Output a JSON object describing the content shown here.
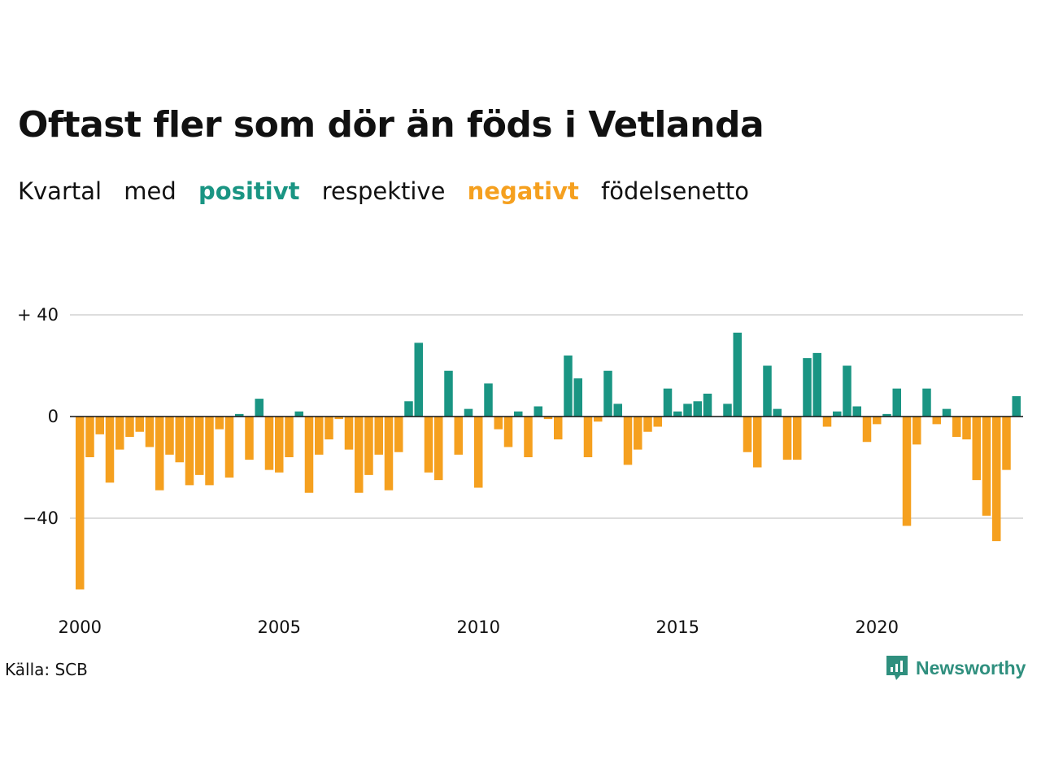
{
  "title": "Oftast fler som dör än föds i Vetlanda",
  "subtitle": {
    "part1": "Kvartal",
    "part2": "med",
    "positive_word": "positivt",
    "part3": "respektive",
    "negative_word": "negativt",
    "part4": "födelsenetto"
  },
  "source": "Källa: SCB",
  "brand": "Newsworthy",
  "colors": {
    "positive": "#1a9583",
    "negative": "#f5a01f",
    "grid": "#dddddd",
    "zero": "#111111"
  },
  "chart_data": {
    "type": "bar",
    "x_start_year": 2000,
    "quarters_per_year": 4,
    "ylim": [
      -70,
      42
    ],
    "grid": true,
    "yticks": [
      {
        "value": 40,
        "label": "+ 40"
      },
      {
        "value": 0,
        "label": "0"
      },
      {
        "value": -40,
        "label": "−40"
      }
    ],
    "xticks": [
      {
        "value": 2000,
        "label": "2000"
      },
      {
        "value": 2005,
        "label": "2005"
      },
      {
        "value": 2010,
        "label": "2010"
      },
      {
        "value": 2015,
        "label": "2015"
      },
      {
        "value": 2020,
        "label": "2020"
      }
    ],
    "values": [
      -68,
      -16,
      -7,
      -26,
      -13,
      -8,
      -6,
      -12,
      -29,
      -15,
      -18,
      -27,
      -23,
      -27,
      -5,
      -24,
      1,
      -17,
      7,
      -21,
      -22,
      -16,
      2,
      -30,
      -15,
      -9,
      -1,
      -13,
      -30,
      -23,
      -15,
      -29,
      -14,
      6,
      29,
      -22,
      -25,
      18,
      -15,
      3,
      -28,
      13,
      -5,
      -12,
      2,
      -16,
      4,
      -1,
      -9,
      24,
      15,
      -16,
      -2,
      18,
      5,
      -19,
      -13,
      -6,
      -4,
      11,
      2,
      5,
      6,
      9,
      0,
      5,
      33,
      -14,
      -20,
      20,
      3,
      -17,
      -17,
      23,
      25,
      -4,
      2,
      20,
      4,
      -10,
      -3,
      1,
      11,
      -43,
      -11,
      11,
      -3,
      3,
      -8,
      -9,
      -25,
      -39,
      -49,
      -21,
      8
    ]
  }
}
